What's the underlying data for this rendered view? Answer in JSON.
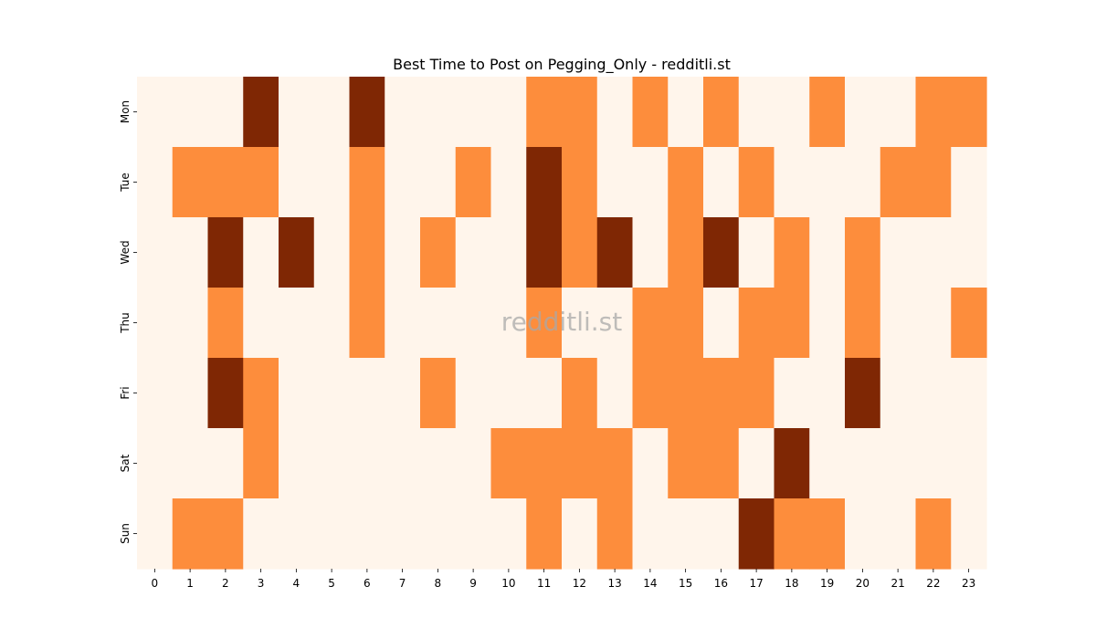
{
  "chart_data": {
    "type": "heatmap",
    "title": "Best Time to Post on Pegging_Only - redditli.st",
    "watermark": "redditli.st",
    "x_categories": [
      "0",
      "1",
      "2",
      "3",
      "4",
      "5",
      "6",
      "7",
      "8",
      "9",
      "10",
      "11",
      "12",
      "13",
      "14",
      "15",
      "16",
      "17",
      "18",
      "19",
      "20",
      "21",
      "22",
      "23"
    ],
    "y_categories": [
      "Mon",
      "Tue",
      "Wed",
      "Thu",
      "Fri",
      "Sat",
      "Sun"
    ],
    "values": [
      [
        0,
        0,
        0,
        2,
        0,
        0,
        2,
        0,
        0,
        0,
        0,
        1,
        1,
        0,
        1,
        0,
        1,
        0,
        0,
        1,
        0,
        0,
        1,
        1
      ],
      [
        0,
        1,
        1,
        1,
        0,
        0,
        1,
        0,
        0,
        1,
        0,
        2,
        1,
        0,
        0,
        1,
        0,
        1,
        0,
        0,
        0,
        1,
        1,
        0
      ],
      [
        0,
        0,
        2,
        0,
        2,
        0,
        1,
        0,
        1,
        0,
        0,
        2,
        1,
        2,
        0,
        1,
        2,
        0,
        1,
        0,
        1,
        0,
        0,
        0
      ],
      [
        0,
        0,
        1,
        0,
        0,
        0,
        1,
        0,
        0,
        0,
        0,
        1,
        0,
        0,
        1,
        1,
        0,
        1,
        1,
        0,
        1,
        0,
        0,
        1
      ],
      [
        0,
        0,
        2,
        1,
        0,
        0,
        0,
        0,
        1,
        0,
        0,
        0,
        1,
        0,
        1,
        1,
        1,
        1,
        0,
        0,
        2,
        0,
        0,
        0
      ],
      [
        0,
        0,
        0,
        1,
        0,
        0,
        0,
        0,
        0,
        0,
        1,
        1,
        1,
        1,
        0,
        1,
        1,
        0,
        2,
        0,
        0,
        0,
        0,
        0
      ],
      [
        0,
        1,
        1,
        0,
        0,
        0,
        0,
        0,
        0,
        0,
        0,
        1,
        0,
        1,
        0,
        0,
        0,
        2,
        1,
        1,
        0,
        0,
        1,
        0
      ]
    ],
    "colors": [
      "#fff5eb",
      "#fd8d3c",
      "#7f2704"
    ],
    "colorbar": false,
    "grid": false
  }
}
